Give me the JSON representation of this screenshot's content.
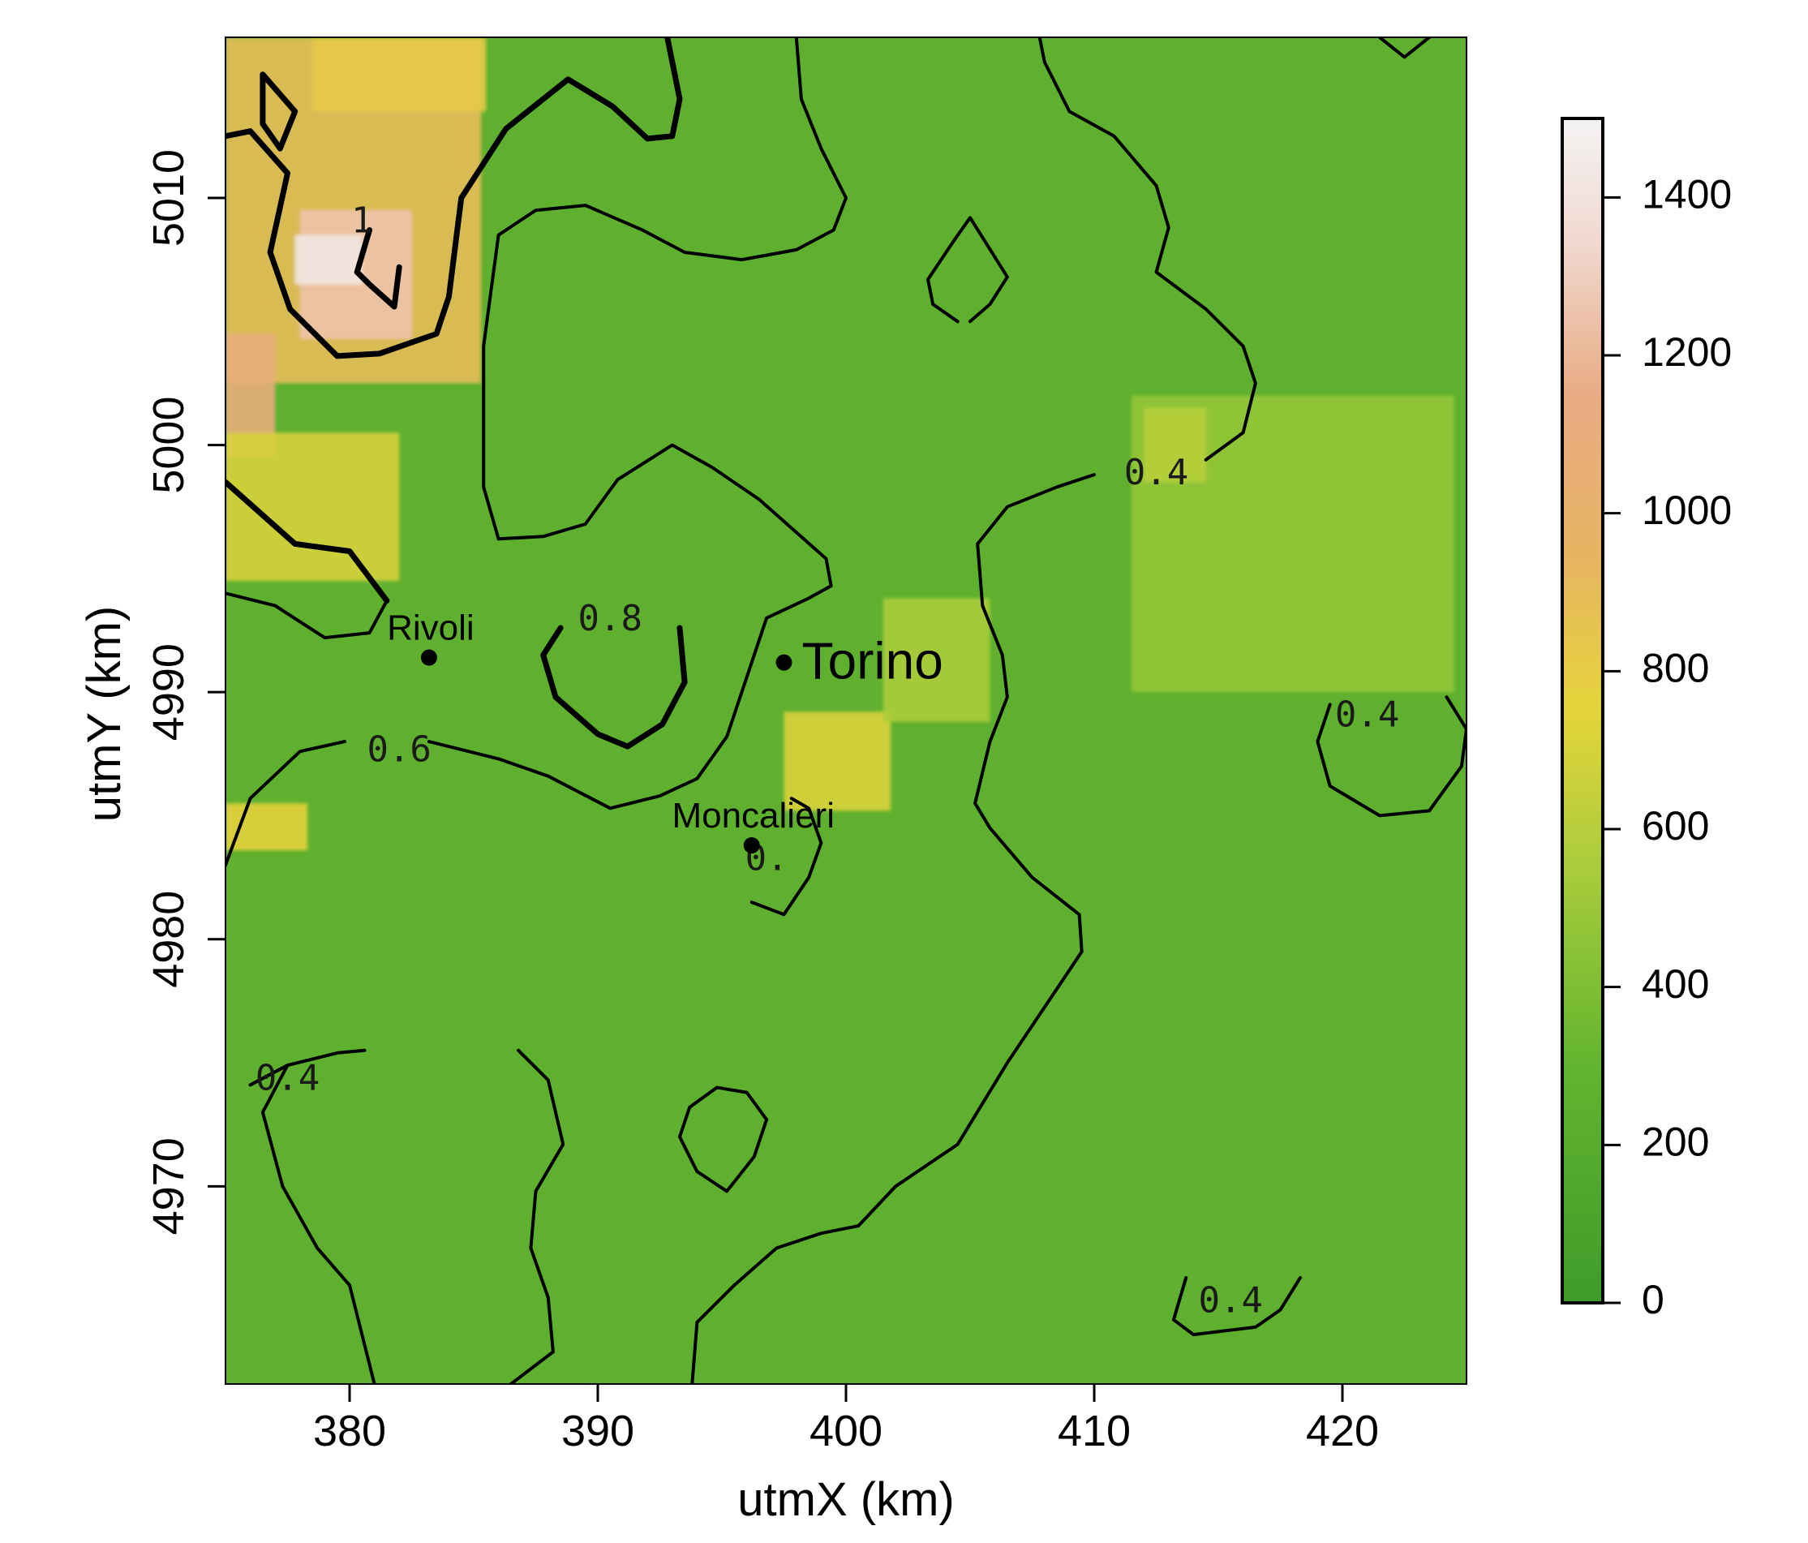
{
  "chart_data": {
    "type": "heatmap",
    "xlabel": "utmX (km)",
    "ylabel": "utmY (km)",
    "xlim": [
      375,
      425
    ],
    "ylim": [
      4962,
      5016.5
    ],
    "x_ticks": [
      380,
      390,
      400,
      410,
      420
    ],
    "x_tick_labels": [
      "380",
      "390",
      "400",
      "410",
      "420"
    ],
    "y_ticks": [
      4970,
      4980,
      4990,
      5000,
      5010
    ],
    "y_tick_labels": [
      "4970",
      "4980",
      "4990",
      "5000",
      "5010"
    ],
    "colorbar": {
      "range": [
        0,
        1500
      ],
      "ticks": [
        0,
        200,
        400,
        600,
        800,
        1000,
        1200,
        1400
      ],
      "tick_labels": [
        "0",
        "200",
        "400",
        "600",
        "800",
        "1000",
        "1200",
        "1400"
      ],
      "colors": [
        {
          "value": 0,
          "color": "#3f9b2a"
        },
        {
          "value": 300,
          "color": "#63b52f"
        },
        {
          "value": 550,
          "color": "#a9cc3c"
        },
        {
          "value": 750,
          "color": "#e5d43a"
        },
        {
          "value": 950,
          "color": "#e7b463"
        },
        {
          "value": 1150,
          "color": "#e8ab84"
        },
        {
          "value": 1350,
          "color": "#f2dad2"
        },
        {
          "value": 1500,
          "color": "#f3f3f3"
        }
      ]
    },
    "cities": [
      {
        "name": "Torino",
        "x": 397.5,
        "y": 4991.2,
        "size": "large"
      },
      {
        "name": "Rivoli",
        "x": 383.2,
        "y": 4991.4,
        "size": "small"
      },
      {
        "name": "Moncalieri",
        "x": 396.2,
        "y": 4983.8,
        "size": "small"
      }
    ],
    "contour_labels": [
      {
        "text": "0.8",
        "x": 390.5,
        "y": 4992.9
      },
      {
        "text": "0.6",
        "x": 382.0,
        "y": 4987.6
      },
      {
        "text": "0.4",
        "x": 412.5,
        "y": 4998.8
      },
      {
        "text": "0.4",
        "x": 421.0,
        "y": 4989.0
      },
      {
        "text": "0.4",
        "x": 377.5,
        "y": 4974.3
      },
      {
        "text": "0.4",
        "x": 415.5,
        "y": 4965.3
      },
      {
        "text": "1",
        "x": 380.5,
        "y": 5009.0
      },
      {
        "text": "0.",
        "x": 396.8,
        "y": 4983.2
      }
    ],
    "contours": [
      {
        "level": 0.8,
        "weight": "bold",
        "points": [
          [
            388.5,
            4992.6
          ],
          [
            387.8,
            4991.5
          ],
          [
            388.3,
            4989.8
          ],
          [
            390.0,
            4988.3
          ],
          [
            391.2,
            4987.8
          ],
          [
            392.6,
            4988.7
          ],
          [
            393.5,
            4990.4
          ],
          [
            393.3,
            4992.6
          ]
        ]
      },
      {
        "level": 0.6,
        "weight": "normal",
        "points": [
          [
            375.0,
            4994.0
          ],
          [
            377.0,
            4993.5
          ],
          [
            379.0,
            4992.2
          ],
          [
            380.8,
            4992.4
          ],
          [
            381.5,
            4993.7
          ]
        ]
      },
      {
        "level": 0.6,
        "weight": "normal",
        "points": [
          [
            375.0,
            4983.0
          ],
          [
            376.0,
            4985.7
          ],
          [
            378.0,
            4987.6
          ],
          [
            379.8,
            4988.0
          ]
        ]
      },
      {
        "level": 0.6,
        "weight": "normal",
        "points": [
          [
            383.2,
            4988.0
          ],
          [
            386.0,
            4987.3
          ],
          [
            388.0,
            4986.6
          ],
          [
            390.5,
            4985.3
          ],
          [
            392.5,
            4985.8
          ],
          [
            394.0,
            4986.5
          ],
          [
            395.2,
            4988.2
          ],
          [
            396.8,
            4993.0
          ],
          [
            398.5,
            4993.8
          ],
          [
            399.4,
            4994.3
          ],
          [
            399.2,
            4995.4
          ],
          [
            396.5,
            4997.8
          ],
          [
            394.6,
            4999.1
          ],
          [
            393.0,
            5000.0
          ],
          [
            390.8,
            4998.6
          ],
          [
            389.5,
            4996.8
          ],
          [
            387.8,
            4996.3
          ],
          [
            386.0,
            4996.2
          ],
          [
            385.4,
            4998.3
          ],
          [
            385.4,
            5004.0
          ],
          [
            386.0,
            5008.5
          ],
          [
            387.5,
            5009.5
          ],
          [
            389.5,
            5009.7
          ],
          [
            391.8,
            5008.7
          ],
          [
            393.5,
            5007.8
          ],
          [
            395.8,
            5007.5
          ],
          [
            398.0,
            5007.9
          ],
          [
            399.5,
            5008.7
          ],
          [
            400.0,
            5010.0
          ],
          [
            399.0,
            5012.0
          ],
          [
            398.2,
            5014.0
          ],
          [
            398.0,
            5016.5
          ]
        ]
      },
      {
        "level": 0.6,
        "weight": "normal",
        "points": [
          [
            404.5,
            5005.0
          ],
          [
            403.5,
            5005.7
          ],
          [
            403.3,
            5006.7
          ],
          [
            404.3,
            5008.2
          ],
          [
            405.0,
            5009.2
          ],
          [
            406.5,
            5006.8
          ],
          [
            405.8,
            5005.7
          ],
          [
            405.0,
            5005.0
          ]
        ]
      },
      {
        "level": 0.6,
        "weight": "normal",
        "points": [
          [
            393.7,
            4973.2
          ],
          [
            393.3,
            4972.0
          ],
          [
            394.0,
            4970.6
          ],
          [
            395.2,
            4969.8
          ],
          [
            396.3,
            4971.2
          ],
          [
            396.8,
            4972.7
          ],
          [
            396.0,
            4973.8
          ],
          [
            394.8,
            4974.0
          ],
          [
            393.7,
            4973.2
          ]
        ]
      },
      {
        "level": 0.6,
        "weight": "normal",
        "points": [
          [
            393.8,
            4962.0
          ],
          [
            394.0,
            4964.5
          ],
          [
            395.5,
            4966.0
          ],
          [
            397.2,
            4967.5
          ],
          [
            399.0,
            4968.1
          ],
          [
            400.5,
            4968.4
          ],
          [
            402.0,
            4970.0
          ],
          [
            404.5,
            4971.7
          ],
          [
            406.5,
            4975.0
          ],
          [
            408.5,
            4978.0
          ],
          [
            409.5,
            4979.5
          ],
          [
            409.4,
            4981.0
          ],
          [
            407.5,
            4982.5
          ],
          [
            405.8,
            4984.5
          ],
          [
            405.2,
            4985.5
          ],
          [
            405.8,
            4988.0
          ],
          [
            406.5,
            4989.8
          ],
          [
            406.3,
            4991.5
          ],
          [
            405.5,
            4993.5
          ],
          [
            405.3,
            4996.0
          ],
          [
            406.5,
            4997.5
          ],
          [
            408.5,
            4998.3
          ],
          [
            410.0,
            4998.8
          ]
        ]
      },
      {
        "level": 0.6,
        "weight": "normal",
        "points": [
          [
            414.5,
            4999.4
          ],
          [
            416.0,
            5000.5
          ],
          [
            416.5,
            5002.5
          ],
          [
            416.0,
            5004.0
          ],
          [
            414.5,
            5005.5
          ],
          [
            412.5,
            5007.0
          ],
          [
            413.0,
            5008.8
          ],
          [
            412.5,
            5010.5
          ],
          [
            410.8,
            5012.5
          ],
          [
            409.0,
            5013.5
          ],
          [
            408.0,
            5015.5
          ],
          [
            407.8,
            5016.5
          ]
        ]
      },
      {
        "level": 0.6,
        "weight": "normal",
        "points": [
          [
            421.5,
            5016.5
          ],
          [
            422.5,
            5015.7
          ],
          [
            423.5,
            5016.5
          ]
        ]
      },
      {
        "level": 0.6,
        "weight": "normal",
        "points": [
          [
            396.2,
            4981.5
          ],
          [
            397.5,
            4981.0
          ],
          [
            398.5,
            4982.5
          ],
          [
            399.0,
            4983.9
          ],
          [
            398.5,
            4985.3
          ],
          [
            397.8,
            4985.7
          ]
        ]
      },
      {
        "level": 0.4,
        "weight": "normal",
        "points": [
          [
            419.5,
            4989.5
          ],
          [
            419.0,
            4988.0
          ],
          [
            419.5,
            4986.2
          ],
          [
            421.5,
            4985.0
          ],
          [
            423.5,
            4985.2
          ],
          [
            424.8,
            4987.0
          ],
          [
            425.0,
            4988.5
          ],
          [
            424.2,
            4989.8
          ]
        ]
      },
      {
        "level": 0.4,
        "weight": "normal",
        "points": [
          [
            376.0,
            4974.1
          ],
          [
            377.5,
            4974.9
          ],
          [
            379.5,
            4975.4
          ],
          [
            380.6,
            4975.5
          ]
        ]
      },
      {
        "level": 0.4,
        "weight": "normal",
        "points": [
          [
            386.8,
            4975.5
          ],
          [
            388.0,
            4974.3
          ],
          [
            388.6,
            4971.7
          ],
          [
            387.5,
            4969.8
          ],
          [
            387.3,
            4967.5
          ],
          [
            388.0,
            4965.5
          ],
          [
            388.2,
            4963.3
          ],
          [
            386.5,
            4962.0
          ]
        ]
      },
      {
        "level": 0.4,
        "weight": "normal",
        "points": [
          [
            376.0,
            4974.1
          ],
          [
            377.5,
            4974.9
          ],
          [
            376.5,
            4973.0
          ],
          [
            377.3,
            4970.0
          ],
          [
            378.7,
            4967.5
          ],
          [
            380.0,
            4966.0
          ],
          [
            381.0,
            4962.0
          ]
        ]
      },
      {
        "level": 0.4,
        "weight": "normal",
        "points": [
          [
            413.7,
            4966.3
          ],
          [
            413.2,
            4964.6
          ],
          [
            414.0,
            4964.0
          ],
          [
            416.5,
            4964.3
          ],
          [
            417.5,
            4965.0
          ],
          [
            418.3,
            4966.3
          ]
        ]
      }
    ],
    "bold_contours": [
      {
        "level": 1.0,
        "points": [
          [
            376.5,
            5015.0
          ],
          [
            377.8,
            5013.5
          ],
          [
            377.2,
            5012.0
          ],
          [
            376.5,
            5013.0
          ],
          [
            376.5,
            5014.0
          ],
          [
            376.5,
            5015.0
          ]
        ]
      },
      {
        "level": 1.0,
        "points": [
          [
            375.0,
            5012.5
          ],
          [
            376.0,
            5012.7
          ],
          [
            377.5,
            5011.0
          ],
          [
            376.8,
            5007.8
          ],
          [
            377.6,
            5005.5
          ],
          [
            379.5,
            5003.6
          ],
          [
            381.2,
            5003.7
          ],
          [
            383.5,
            5004.5
          ],
          [
            384.0,
            5006.0
          ],
          [
            384.5,
            5010.0
          ],
          [
            386.3,
            5012.8
          ],
          [
            388.8,
            5014.8
          ],
          [
            390.6,
            5013.7
          ],
          [
            392.0,
            5012.4
          ],
          [
            393.0,
            5012.5
          ],
          [
            393.3,
            5014.0
          ],
          [
            392.8,
            5016.5
          ]
        ]
      },
      {
        "level": 1.0,
        "points": [
          [
            380.8,
            5008.7
          ],
          [
            380.3,
            5007.0
          ],
          [
            380.8,
            5006.5
          ],
          [
            381.8,
            5005.6
          ],
          [
            382.0,
            5007.2
          ]
        ]
      },
      {
        "level": 1.0,
        "points": [
          [
            375.0,
            4998.5
          ],
          [
            377.8,
            4996.0
          ],
          [
            380.0,
            4995.7
          ],
          [
            381.5,
            4993.7
          ]
        ]
      }
    ],
    "elevation_regions": [
      {
        "x": [
          375,
          385.3
        ],
        "y": [
          5002.5,
          5016.5
        ],
        "value": 900
      },
      {
        "x": [
          378,
          382.5
        ],
        "y": [
          5004.3,
          5009.5
        ],
        "value": 1250
      },
      {
        "x": [
          377.8,
          380.5
        ],
        "y": [
          5006.5,
          5008.5
        ],
        "value": 1420
      },
      {
        "x": [
          375,
          377
        ],
        "y": [
          4999.5,
          5004.5
        ],
        "value": 1100
      },
      {
        "x": [
          375,
          382
        ],
        "y": [
          4994.5,
          5000.5
        ],
        "value": 700
      },
      {
        "x": [
          375,
          378.3
        ],
        "y": [
          4983.6,
          4985.5
        ],
        "value": 760
      },
      {
        "x": [
          397.5,
          401.8
        ],
        "y": [
          4985.2,
          4989.2
        ],
        "value": 720
      },
      {
        "x": [
          401.5,
          405.8
        ],
        "y": [
          4988.8,
          4993.8
        ],
        "value": 560
      },
      {
        "x": [
          411.5,
          424.5
        ],
        "y": [
          4990.0,
          5002.0
        ],
        "value": 480
      },
      {
        "x": [
          412.0,
          414.5
        ],
        "y": [
          4998.5,
          5001.5
        ],
        "value": 600
      },
      {
        "x": [
          378.5,
          385.5
        ],
        "y": [
          5013.5,
          5016.5
        ],
        "value": 820
      }
    ]
  }
}
